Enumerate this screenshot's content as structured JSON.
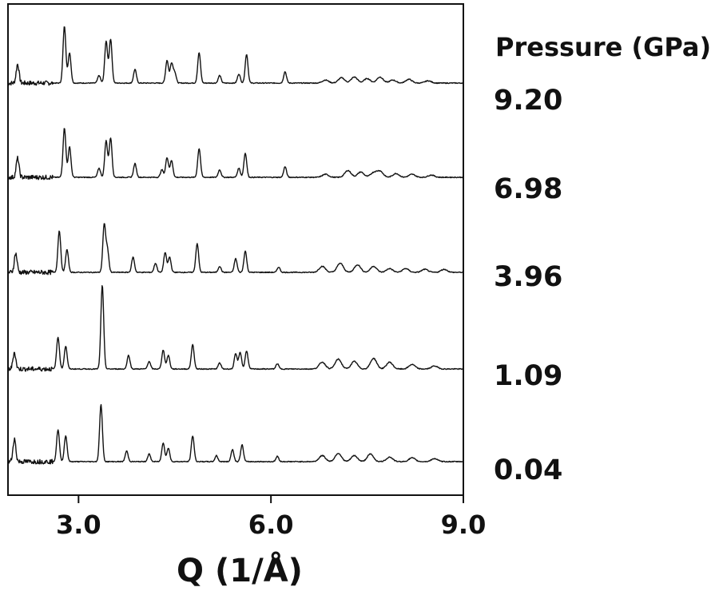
{
  "chart_data": {
    "type": "line",
    "title": "",
    "xlabel": "Q (1/Å)",
    "ylabel": "",
    "xlim": [
      1.9,
      9.0
    ],
    "xticks": [
      3.0,
      6.0,
      9.0
    ],
    "xtick_labels": [
      "3.0",
      "6.0",
      "9.0"
    ],
    "yticks": [],
    "grid": false,
    "legend": {
      "title": "Pressure (GPa)",
      "placement": "right"
    },
    "offset_stacked": true,
    "series": [
      {
        "name": "9.20",
        "baseline": 0,
        "peaks": [
          [
            2.05,
            0.25
          ],
          [
            2.78,
            0.75
          ],
          [
            2.86,
            0.4
          ],
          [
            3.32,
            0.1
          ],
          [
            3.43,
            0.55
          ],
          [
            3.5,
            0.58
          ],
          [
            3.88,
            0.18
          ],
          [
            4.38,
            0.3
          ],
          [
            4.45,
            0.26
          ],
          [
            4.5,
            0.14
          ],
          [
            4.88,
            0.4
          ],
          [
            5.2,
            0.1
          ],
          [
            5.5,
            0.12
          ],
          [
            5.62,
            0.38
          ],
          [
            6.22,
            0.15
          ],
          [
            6.85,
            0.04
          ],
          [
            7.1,
            0.07
          ],
          [
            7.3,
            0.08
          ],
          [
            7.5,
            0.06
          ],
          [
            7.7,
            0.08
          ],
          [
            7.9,
            0.04
          ],
          [
            8.15,
            0.05
          ],
          [
            8.45,
            0.03
          ]
        ]
      },
      {
        "name": "6.98",
        "baseline": 0,
        "peaks": [
          [
            2.05,
            0.25
          ],
          [
            2.78,
            0.65
          ],
          [
            2.86,
            0.4
          ],
          [
            3.32,
            0.12
          ],
          [
            3.43,
            0.48
          ],
          [
            3.5,
            0.52
          ],
          [
            3.88,
            0.18
          ],
          [
            4.3,
            0.1
          ],
          [
            4.38,
            0.26
          ],
          [
            4.45,
            0.22
          ],
          [
            4.88,
            0.38
          ],
          [
            5.2,
            0.1
          ],
          [
            5.5,
            0.12
          ],
          [
            5.6,
            0.32
          ],
          [
            6.22,
            0.14
          ],
          [
            6.85,
            0.04
          ],
          [
            7.2,
            0.09
          ],
          [
            7.4,
            0.07
          ],
          [
            7.6,
            0.06
          ],
          [
            7.7,
            0.08
          ],
          [
            7.95,
            0.05
          ],
          [
            8.2,
            0.04
          ],
          [
            8.5,
            0.03
          ]
        ]
      },
      {
        "name": "3.96",
        "baseline": 0,
        "peaks": [
          [
            2.02,
            0.25
          ],
          [
            2.7,
            0.55
          ],
          [
            2.82,
            0.3
          ],
          [
            3.4,
            0.62
          ],
          [
            3.45,
            0.3
          ],
          [
            3.85,
            0.2
          ],
          [
            4.2,
            0.12
          ],
          [
            4.35,
            0.26
          ],
          [
            4.42,
            0.2
          ],
          [
            4.85,
            0.38
          ],
          [
            5.2,
            0.08
          ],
          [
            5.45,
            0.18
          ],
          [
            5.6,
            0.28
          ],
          [
            6.12,
            0.07
          ],
          [
            6.8,
            0.08
          ],
          [
            7.08,
            0.12
          ],
          [
            7.35,
            0.1
          ],
          [
            7.6,
            0.08
          ],
          [
            7.85,
            0.05
          ],
          [
            8.1,
            0.05
          ],
          [
            8.4,
            0.04
          ],
          [
            8.7,
            0.04
          ]
        ]
      },
      {
        "name": "1.09",
        "baseline": 0,
        "peaks": [
          [
            2.0,
            0.22
          ],
          [
            2.68,
            0.42
          ],
          [
            2.8,
            0.3
          ],
          [
            3.37,
            1.1
          ],
          [
            3.78,
            0.18
          ],
          [
            4.1,
            0.1
          ],
          [
            4.32,
            0.25
          ],
          [
            4.4,
            0.18
          ],
          [
            4.78,
            0.32
          ],
          [
            5.2,
            0.08
          ],
          [
            5.45,
            0.2
          ],
          [
            5.52,
            0.22
          ],
          [
            5.62,
            0.24
          ],
          [
            6.1,
            0.07
          ],
          [
            6.8,
            0.09
          ],
          [
            7.05,
            0.13
          ],
          [
            7.3,
            0.1
          ],
          [
            7.6,
            0.14
          ],
          [
            7.85,
            0.09
          ],
          [
            8.2,
            0.06
          ],
          [
            8.55,
            0.04
          ]
        ]
      },
      {
        "name": "0.04",
        "baseline": 0,
        "peaks": [
          [
            2.0,
            0.3
          ],
          [
            2.68,
            0.42
          ],
          [
            2.8,
            0.34
          ],
          [
            3.35,
            0.75
          ],
          [
            3.75,
            0.14
          ],
          [
            4.1,
            0.1
          ],
          [
            4.32,
            0.25
          ],
          [
            4.4,
            0.18
          ],
          [
            4.78,
            0.34
          ],
          [
            5.15,
            0.08
          ],
          [
            5.4,
            0.16
          ],
          [
            5.55,
            0.22
          ],
          [
            6.1,
            0.07
          ],
          [
            6.8,
            0.08
          ],
          [
            7.05,
            0.11
          ],
          [
            7.3,
            0.08
          ],
          [
            7.55,
            0.1
          ],
          [
            7.85,
            0.06
          ],
          [
            8.2,
            0.05
          ],
          [
            8.55,
            0.04
          ]
        ]
      }
    ]
  }
}
